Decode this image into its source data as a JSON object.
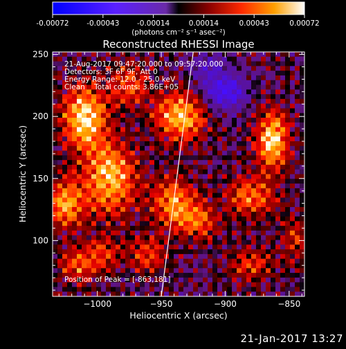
{
  "colorbar": {
    "tick_labels": [
      "-0.00072",
      "-0.00043",
      "-0.00014",
      "0.00014",
      "0.00043",
      "0.00072"
    ],
    "units": "(photons cm⁻² s⁻¹ asec⁻²)",
    "range": [
      -0.00072,
      0.00072
    ]
  },
  "image": {
    "title": "Reconstructed RHESSI Image",
    "annotations": [
      "21-Aug-2017 09:47:20.000 to 09:57:20.000",
      "Detectors: 3F 6F 9F, Att 0",
      "Energy Range: 12.0 - 25.0 keV",
      "Clean    Total counts: 3.86E+05"
    ],
    "peak_label": "Position of Peak = [-863,181]"
  },
  "chart_data": {
    "type": "heatmap",
    "title": "Reconstructed RHESSI Image",
    "xlabel": "Heliocentric X (arcsec)",
    "ylabel": "Heliocentric Y (arcsec)",
    "xlim": [
      -1035,
      -838
    ],
    "ylim": [
      55,
      252
    ],
    "x_ticks": [
      -1000,
      -950,
      -900,
      -850
    ],
    "y_ticks": [
      100,
      150,
      200,
      250
    ],
    "x_tick_labels": [
      "−1000",
      "−950",
      "−900",
      "−850"
    ],
    "y_tick_labels": [
      "100",
      "150",
      "200",
      "250"
    ],
    "peak": [
      -863,
      181
    ],
    "limb_points": [
      [
        -925,
        252
      ],
      [
        -950,
        55
      ]
    ],
    "blobs": [
      {
        "x": -1010,
        "y": 200,
        "amp": 1.0,
        "sx": 12,
        "sy": 18
      },
      {
        "x": -990,
        "y": 150,
        "amp": 0.9,
        "sx": 14,
        "sy": 20
      },
      {
        "x": -1025,
        "y": 130,
        "amp": 0.8,
        "sx": 10,
        "sy": 14
      },
      {
        "x": -935,
        "y": 200,
        "amp": 0.9,
        "sx": 14,
        "sy": 14
      },
      {
        "x": -975,
        "y": 225,
        "amp": 0.55,
        "sx": 10,
        "sy": 12
      },
      {
        "x": -940,
        "y": 130,
        "amp": 0.75,
        "sx": 12,
        "sy": 14
      },
      {
        "x": -920,
        "y": 115,
        "amp": 0.55,
        "sx": 10,
        "sy": 10
      },
      {
        "x": -880,
        "y": 135,
        "amp": 0.6,
        "sx": 14,
        "sy": 12
      },
      {
        "x": -863,
        "y": 181,
        "amp": 1.0,
        "sx": 9,
        "sy": 16
      },
      {
        "x": -1015,
        "y": 80,
        "amp": 0.55,
        "sx": 10,
        "sy": 10
      },
      {
        "x": -995,
        "y": 90,
        "amp": 0.45,
        "sx": 10,
        "sy": 10
      },
      {
        "x": -960,
        "y": 90,
        "amp": 0.5,
        "sx": 10,
        "sy": 10
      },
      {
        "x": -880,
        "y": 80,
        "amp": 0.45,
        "sx": 12,
        "sy": 10
      },
      {
        "x": -845,
        "y": 100,
        "amp": 0.4,
        "sx": 8,
        "sy": 12
      },
      {
        "x": -900,
        "y": 220,
        "amp": -0.9,
        "sx": 12,
        "sy": 10
      },
      {
        "x": -915,
        "y": 240,
        "amp": -0.4,
        "sx": 10,
        "sy": 8
      }
    ]
  },
  "footer": {
    "timestamp": "21-Jan-2017 13:27"
  }
}
